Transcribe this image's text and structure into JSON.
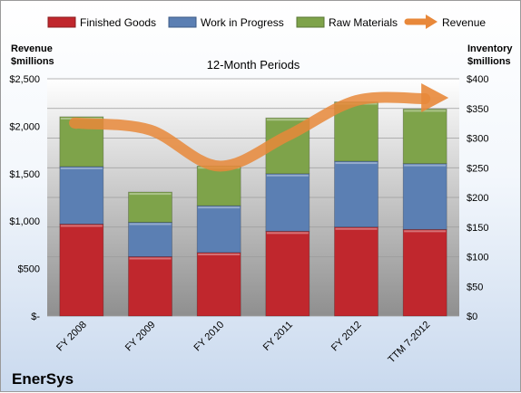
{
  "company": "EnerSys",
  "chart_data": {
    "type": "bar",
    "subtitle": "12-Month Periods",
    "categories": [
      "FY 2008",
      "FY 2009",
      "FY 2010",
      "FY 2011",
      "FY 2012",
      "TTM 7-2012"
    ],
    "series": [
      {
        "name": "Finished Goods",
        "axis": "inventory",
        "color": "#c0272d",
        "values": [
          155,
          100,
          107,
          143,
          150,
          146
        ]
      },
      {
        "name": "Work in Progress",
        "axis": "inventory",
        "color": "#5b7fb3",
        "values": [
          97,
          58,
          79,
          97,
          111,
          111
        ]
      },
      {
        "name": "Raw Materials",
        "axis": "inventory",
        "color": "#7ea34a",
        "values": [
          84,
          51,
          67,
          94,
          100,
          92
        ]
      },
      {
        "name": "Revenue",
        "axis": "revenue",
        "type": "line",
        "color": "#e8883a",
        "values": [
          2030,
          1960,
          1580,
          1900,
          2270,
          2290
        ]
      }
    ],
    "left_axis": {
      "label_line1": "Revenue",
      "label_line2": "$millions",
      "range": [
        0,
        2500
      ],
      "ticks": [
        "$-",
        "$500",
        "$1,000",
        "$1,500",
        "$2,000",
        "$2,500"
      ]
    },
    "right_axis": {
      "label_line1": "Inventory",
      "label_line2": "$millions",
      "range": [
        0,
        400
      ],
      "ticks": [
        "$0",
        "$50",
        "$100",
        "$150",
        "$200",
        "$250",
        "$300",
        "$350",
        "$400"
      ]
    },
    "legend_position": "top",
    "grid": true,
    "stacked": true
  }
}
